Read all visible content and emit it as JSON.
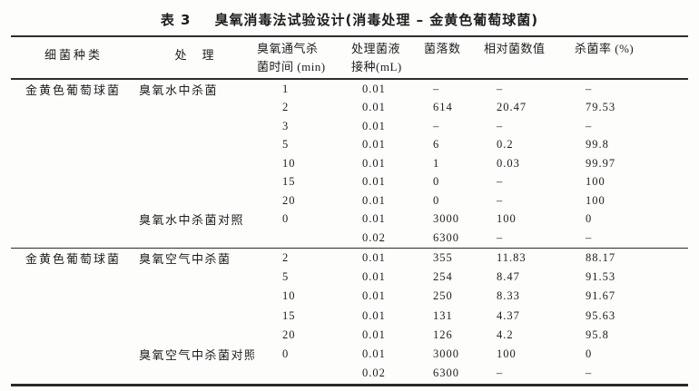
{
  "caption": {
    "number": "表 3",
    "title": "臭氧消毒法试验设计(消毒处理 – 金黄色葡萄球菌)"
  },
  "colors": {
    "paper": "#fdfdfc",
    "ink": "#1d1d1d",
    "rule": "#2e2e2e"
  },
  "table": {
    "headers": [
      {
        "name": "species",
        "lines": [
          "细菌种类"
        ]
      },
      {
        "name": "treatment",
        "lines": [
          "处　理"
        ]
      },
      {
        "name": "ozone-time",
        "lines": [
          "臭氧通气杀",
          "菌时间 (min)"
        ]
      },
      {
        "name": "inoculation",
        "lines": [
          "处理菌液",
          "接种(mL)"
        ]
      },
      {
        "name": "colony-count",
        "lines": [
          "菌落数"
        ]
      },
      {
        "name": "relative-count",
        "lines": [
          "相对菌数值"
        ]
      },
      {
        "name": "kill-rate",
        "lines": [
          "杀菌率 (%)"
        ]
      }
    ],
    "groups": [
      {
        "rows": [
          [
            "金黄色葡萄球菌",
            "臭氧水中杀菌",
            "1",
            "0.01",
            "–",
            "–",
            "–"
          ],
          [
            "",
            "",
            "2",
            "0.01",
            "614",
            "20.47",
            "79.53"
          ],
          [
            "",
            "",
            "3",
            "0.01",
            "–",
            "–",
            "–"
          ],
          [
            "",
            "",
            "5",
            "0.01",
            "6",
            "0.2",
            "99.8"
          ],
          [
            "",
            "",
            "10",
            "0.01",
            "1",
            "0.03",
            "99.97"
          ],
          [
            "",
            "",
            "15",
            "0.01",
            "0",
            "–",
            "100"
          ],
          [
            "",
            "",
            "20",
            "0.01",
            "0",
            "–",
            "100"
          ],
          [
            "",
            "臭氧水中杀菌对照",
            "0",
            "0.01",
            "3000",
            "100",
            "0"
          ],
          [
            "",
            "",
            "",
            "0.02",
            "6300",
            "–",
            "–"
          ]
        ]
      },
      {
        "rows": [
          [
            "金黄色葡萄球菌",
            "臭氧空气中杀菌",
            "2",
            "0.01",
            "355",
            "11.83",
            "88.17"
          ],
          [
            "",
            "",
            "5",
            "0.01",
            "254",
            "8.47",
            "91.53"
          ],
          [
            "",
            "",
            "10",
            "0.01",
            "250",
            "8.33",
            "91.67"
          ],
          [
            "",
            "",
            "15",
            "0.01",
            "131",
            "4.37",
            "95.63"
          ],
          [
            "",
            "",
            "20",
            "0.01",
            "126",
            "4.2",
            "95.8"
          ],
          [
            "",
            "臭氧空气中杀菌对照",
            "0",
            "0.01",
            "3000",
            "100",
            "0"
          ],
          [
            "",
            "",
            "",
            "0.02",
            "6300",
            "–",
            "–"
          ]
        ]
      }
    ]
  }
}
